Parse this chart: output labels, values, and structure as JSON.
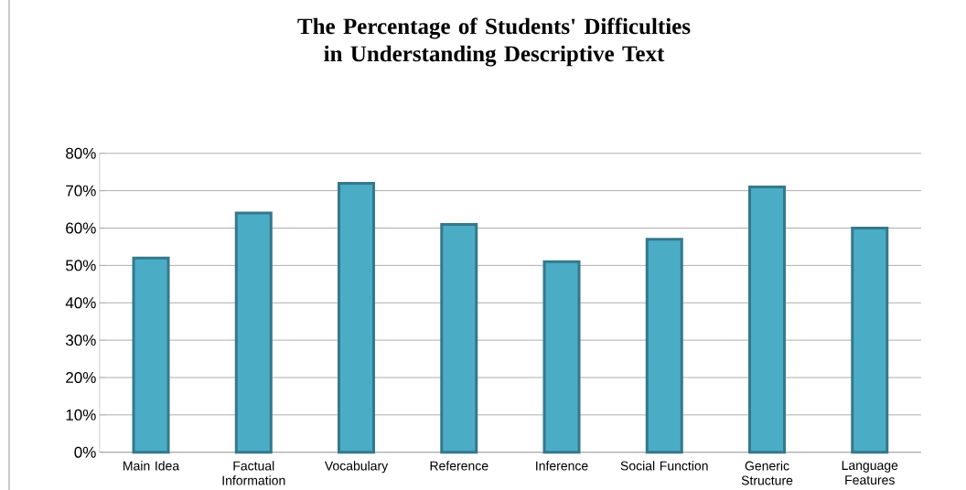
{
  "chart_data": {
    "type": "bar",
    "title": "The Percentage of Students' Difficulties in Understanding Descriptive Text",
    "categories": [
      "Main Idea",
      "Factual Information",
      "Vocabulary",
      "Reference",
      "Inference",
      "Social Function",
      "Generic Structure",
      "Language Features"
    ],
    "values": [
      52,
      64,
      72,
      61,
      51,
      57,
      71,
      60
    ],
    "color": "#4bacc6",
    "ylim": [
      0,
      80
    ],
    "yticks": [
      {
        "value": 0,
        "label": "0%"
      },
      {
        "value": 10,
        "label": "10%"
      },
      {
        "value": 20,
        "label": "20%"
      },
      {
        "value": 30,
        "label": "30%"
      },
      {
        "value": 40,
        "label": "40%"
      },
      {
        "value": 50,
        "label": "50%"
      },
      {
        "value": 60,
        "label": "60%"
      },
      {
        "value": 70,
        "label": "70%"
      },
      {
        "value": 80,
        "label": "80%"
      }
    ],
    "grid": "y"
  }
}
